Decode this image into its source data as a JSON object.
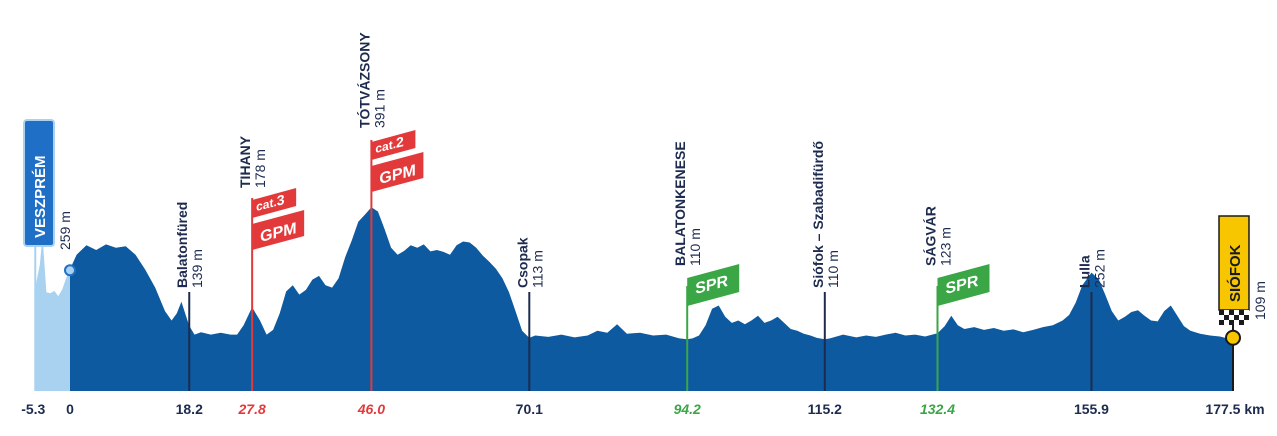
{
  "chart_data": {
    "type": "area",
    "x_unit": "km",
    "xlim": [
      -5.3,
      177.5
    ],
    "ylim": [
      0,
      420
    ],
    "colors": {
      "profile": "#0d5aa0",
      "neutral_zone": "#a8d2f0",
      "label_text": "#1d2b4f",
      "gpm": "#e23a3a",
      "spr": "#3aa646",
      "finish": "#f7c600"
    },
    "profile": [
      [
        -5.3,
        220
      ],
      [
        -4.6,
        270
      ],
      [
        -4.2,
        330
      ],
      [
        -3.6,
        210
      ],
      [
        -3.0,
        208
      ],
      [
        -2.4,
        213
      ],
      [
        -1.8,
        202
      ],
      [
        -1.2,
        215
      ],
      [
        -0.6,
        240
      ],
      [
        0,
        259
      ],
      [
        1,
        290
      ],
      [
        2.5,
        310
      ],
      [
        4,
        300
      ],
      [
        5.5,
        312
      ],
      [
        7,
        305
      ],
      [
        8.5,
        308
      ],
      [
        10,
        290
      ],
      [
        11.5,
        258
      ],
      [
        13,
        220
      ],
      [
        14.5,
        170
      ],
      [
        15.5,
        150
      ],
      [
        16.3,
        165
      ],
      [
        17,
        190
      ],
      [
        18.2,
        139
      ],
      [
        19,
        120
      ],
      [
        20,
        125
      ],
      [
        21.5,
        120
      ],
      [
        23,
        124
      ],
      [
        24.5,
        120
      ],
      [
        25.5,
        120
      ],
      [
        26.5,
        140
      ],
      [
        27.8,
        178
      ],
      [
        29,
        150
      ],
      [
        30,
        120
      ],
      [
        31,
        130
      ],
      [
        32,
        165
      ],
      [
        33,
        212
      ],
      [
        34,
        225
      ],
      [
        35,
        205
      ],
      [
        36,
        215
      ],
      [
        37,
        237
      ],
      [
        38,
        245
      ],
      [
        39,
        225
      ],
      [
        40,
        220
      ],
      [
        41,
        240
      ],
      [
        42,
        285
      ],
      [
        43,
        320
      ],
      [
        44,
        360
      ],
      [
        45,
        375
      ],
      [
        46,
        391
      ],
      [
        47,
        382
      ],
      [
        48,
        345
      ],
      [
        49,
        305
      ],
      [
        50,
        290
      ],
      [
        51,
        298
      ],
      [
        52,
        310
      ],
      [
        53,
        305
      ],
      [
        54,
        312
      ],
      [
        55,
        297
      ],
      [
        56,
        300
      ],
      [
        57,
        296
      ],
      [
        58,
        290
      ],
      [
        59,
        310
      ],
      [
        60,
        318
      ],
      [
        61,
        316
      ],
      [
        62,
        305
      ],
      [
        63,
        288
      ],
      [
        64,
        275
      ],
      [
        65,
        260
      ],
      [
        66,
        240
      ],
      [
        67,
        210
      ],
      [
        68,
        170
      ],
      [
        69,
        128
      ],
      [
        70.1,
        113
      ],
      [
        71,
        118
      ],
      [
        73,
        115
      ],
      [
        75,
        120
      ],
      [
        77,
        114
      ],
      [
        79,
        118
      ],
      [
        80.5,
        128
      ],
      [
        82,
        124
      ],
      [
        83.5,
        142
      ],
      [
        85,
        122
      ],
      [
        87,
        124
      ],
      [
        89,
        118
      ],
      [
        91,
        120
      ],
      [
        93,
        112
      ],
      [
        94.2,
        110
      ],
      [
        95,
        112
      ],
      [
        96,
        118
      ],
      [
        97,
        140
      ],
      [
        98,
        175
      ],
      [
        99,
        182
      ],
      [
        100,
        158
      ],
      [
        101,
        145
      ],
      [
        102,
        150
      ],
      [
        103,
        142
      ],
      [
        104,
        150
      ],
      [
        105,
        160
      ],
      [
        106,
        145
      ],
      [
        107,
        150
      ],
      [
        108,
        158
      ],
      [
        109,
        145
      ],
      [
        110,
        132
      ],
      [
        111,
        128
      ],
      [
        112,
        122
      ],
      [
        113,
        118
      ],
      [
        114,
        113
      ],
      [
        115.2,
        110
      ],
      [
        116,
        112
      ],
      [
        118,
        120
      ],
      [
        120,
        114
      ],
      [
        121.5,
        118
      ],
      [
        123,
        115
      ],
      [
        124.5,
        120
      ],
      [
        126,
        124
      ],
      [
        127.5,
        118
      ],
      [
        129,
        120
      ],
      [
        130.5,
        116
      ],
      [
        132.4,
        123
      ],
      [
        133.5,
        138
      ],
      [
        134.5,
        160
      ],
      [
        135.5,
        140
      ],
      [
        136.5,
        132
      ],
      [
        138,
        136
      ],
      [
        139.5,
        130
      ],
      [
        141,
        134
      ],
      [
        142.5,
        128
      ],
      [
        144,
        131
      ],
      [
        145.5,
        125
      ],
      [
        147,
        130
      ],
      [
        148.5,
        136
      ],
      [
        150,
        140
      ],
      [
        151.5,
        150
      ],
      [
        152.5,
        162
      ],
      [
        153.5,
        188
      ],
      [
        154.5,
        225
      ],
      [
        155.9,
        252
      ],
      [
        157,
        238
      ],
      [
        158,
        205
      ],
      [
        159,
        170
      ],
      [
        160,
        150
      ],
      [
        161,
        158
      ],
      [
        162,
        168
      ],
      [
        163,
        172
      ],
      [
        164,
        160
      ],
      [
        165,
        150
      ],
      [
        166,
        148
      ],
      [
        167,
        170
      ],
      [
        168,
        182
      ],
      [
        169,
        160
      ],
      [
        170,
        138
      ],
      [
        171,
        128
      ],
      [
        172.5,
        122
      ],
      [
        174,
        118
      ],
      [
        175.5,
        116
      ],
      [
        177.5,
        109
      ]
    ],
    "start_marker_km": 0,
    "finish_marker_km": 177.5,
    "ticks": [
      {
        "label": "-5.3",
        "km": -5.3,
        "color": "#1d2b4f"
      },
      {
        "label": "0",
        "km": 0,
        "color": "#1d2b4f"
      },
      {
        "label": "18.2",
        "km": 18.2,
        "color": "#1d2b4f"
      },
      {
        "label": "27.8",
        "km": 27.8,
        "color": "#e23a3a"
      },
      {
        "label": "46.0",
        "km": 46.0,
        "color": "#e23a3a"
      },
      {
        "label": "70.1",
        "km": 70.1,
        "color": "#1d2b4f"
      },
      {
        "label": "94.2",
        "km": 94.2,
        "color": "#3aa646"
      },
      {
        "label": "115.2",
        "km": 115.2,
        "color": "#1d2b4f"
      },
      {
        "label": "132.4",
        "km": 132.4,
        "color": "#3aa646"
      },
      {
        "label": "155.9",
        "km": 155.9,
        "color": "#1d2b4f"
      },
      {
        "label": "177.5 km",
        "km": 177.5,
        "color": "#1d2b4f"
      }
    ],
    "waypoints": [
      {
        "name": "Balatonfüred",
        "elev": "139 m",
        "km": 18.2,
        "alt": 139,
        "type": "line"
      },
      {
        "name": "TIHANY",
        "elev": "178 m",
        "km": 27.8,
        "alt": 178,
        "type": "gpm",
        "cat_prefix": "cat.",
        "cat": "3",
        "flag": "GPM"
      },
      {
        "name": "TÓTVÁZSONY",
        "elev": "391 m",
        "km": 46.0,
        "alt": 391,
        "type": "gpm",
        "cat_prefix": "cat.",
        "cat": "2",
        "flag": "GPM"
      },
      {
        "name": "Csopak",
        "elev": "113 m",
        "km": 70.1,
        "alt": 113,
        "type": "line"
      },
      {
        "name": "BALATONKENESE",
        "elev": "110 m",
        "km": 94.2,
        "alt": 110,
        "type": "spr",
        "flag": "SPR"
      },
      {
        "name": "Siófok – Szabadifürdő",
        "elev": "110 m",
        "km": 115.2,
        "alt": 110,
        "type": "line"
      },
      {
        "name": "SÁGVÁR",
        "elev": "123 m",
        "km": 132.4,
        "alt": 123,
        "type": "spr",
        "flag": "SPR"
      },
      {
        "name": "Lulla",
        "elev": "252 m",
        "km": 155.9,
        "alt": 252,
        "type": "line"
      }
    ],
    "start": {
      "name": "VESZPRÉM",
      "elev": "259 m",
      "km": 0,
      "alt": 259
    },
    "finish": {
      "name": "SIÓFOK",
      "elev": "109 m",
      "km": 177.5,
      "alt": 109
    }
  }
}
